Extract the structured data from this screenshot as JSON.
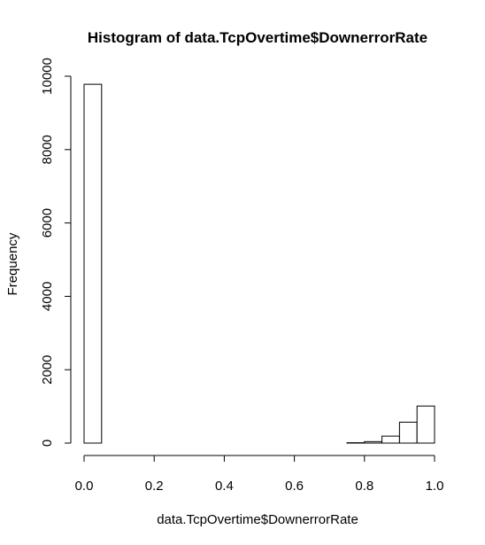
{
  "chart_data": {
    "type": "bar",
    "title": "Histogram of data.TcpOvertime$DownerrorRate",
    "xlabel": "data.TcpOvertime$DownerrorRate",
    "ylabel": "Frequency",
    "xlim": [
      0,
      1
    ],
    "ylim": [
      0,
      10000
    ],
    "x_ticks": [
      "0.0",
      "0.2",
      "0.4",
      "0.6",
      "0.8",
      "1.0"
    ],
    "y_ticks": [
      "0",
      "2000",
      "4000",
      "6000",
      "8000",
      "10000"
    ],
    "bin_width": 0.05,
    "bins": [
      {
        "start": 0.0,
        "end": 0.05,
        "count": 9780
      },
      {
        "start": 0.05,
        "end": 0.1,
        "count": 0
      },
      {
        "start": 0.1,
        "end": 0.15,
        "count": 0
      },
      {
        "start": 0.15,
        "end": 0.2,
        "count": 0
      },
      {
        "start": 0.2,
        "end": 0.25,
        "count": 0
      },
      {
        "start": 0.25,
        "end": 0.3,
        "count": 0
      },
      {
        "start": 0.3,
        "end": 0.35,
        "count": 0
      },
      {
        "start": 0.35,
        "end": 0.4,
        "count": 0
      },
      {
        "start": 0.4,
        "end": 0.45,
        "count": 0
      },
      {
        "start": 0.45,
        "end": 0.5,
        "count": 0
      },
      {
        "start": 0.5,
        "end": 0.55,
        "count": 0
      },
      {
        "start": 0.55,
        "end": 0.6,
        "count": 0
      },
      {
        "start": 0.6,
        "end": 0.65,
        "count": 0
      },
      {
        "start": 0.65,
        "end": 0.7,
        "count": 0
      },
      {
        "start": 0.7,
        "end": 0.75,
        "count": 0
      },
      {
        "start": 0.75,
        "end": 0.8,
        "count": 10
      },
      {
        "start": 0.8,
        "end": 0.85,
        "count": 40
      },
      {
        "start": 0.85,
        "end": 0.9,
        "count": 190
      },
      {
        "start": 0.9,
        "end": 0.95,
        "count": 570
      },
      {
        "start": 0.95,
        "end": 1.0,
        "count": 1010
      }
    ],
    "grid": false,
    "legend": "none",
    "bar_fill": "#ffffff",
    "bar_stroke": "#000000"
  }
}
